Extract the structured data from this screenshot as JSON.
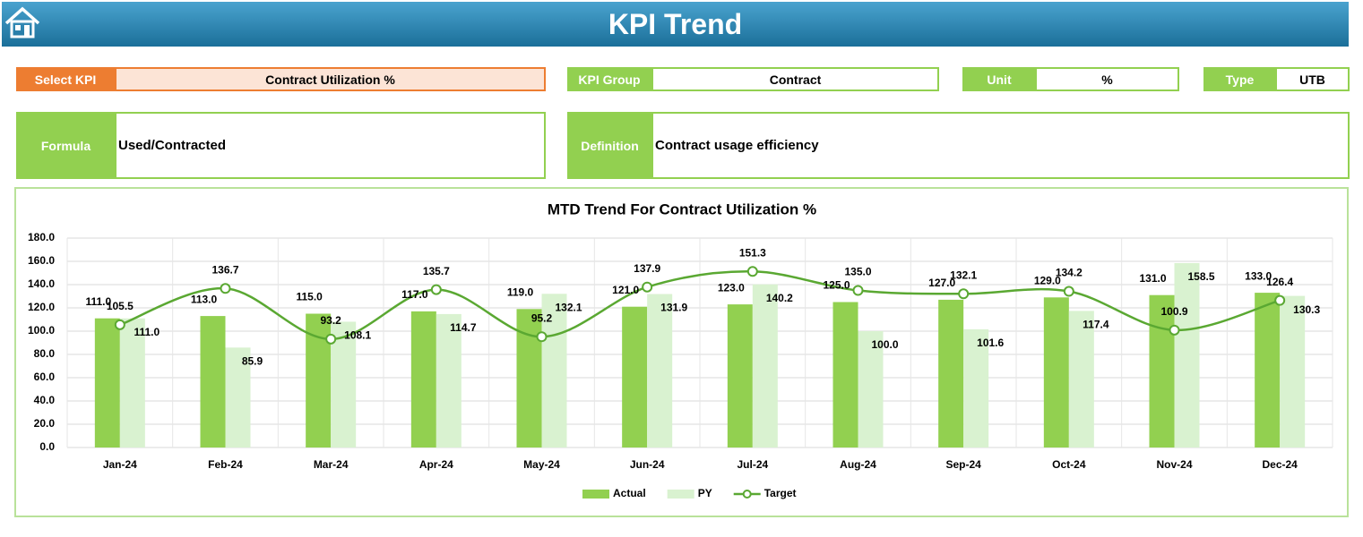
{
  "header": {
    "title": "KPI Trend"
  },
  "fields": {
    "select_kpi": {
      "label": "Select KPI",
      "value": "Contract Utilization %"
    },
    "kpi_group": {
      "label": "KPI Group",
      "value": "Contract"
    },
    "unit": {
      "label": "Unit",
      "value": "%"
    },
    "type": {
      "label": "Type",
      "value": "UTB"
    },
    "formula": {
      "label": "Formula",
      "value": "Used/Contracted"
    },
    "definition": {
      "label": "Definition",
      "value": "Contract usage efficiency"
    }
  },
  "chart_data": {
    "type": "combo",
    "title": "MTD Trend For Contract Utilization %",
    "categories": [
      "Jan-24",
      "Feb-24",
      "Mar-24",
      "Apr-24",
      "May-24",
      "Jun-24",
      "Jul-24",
      "Aug-24",
      "Sep-24",
      "Oct-24",
      "Nov-24",
      "Dec-24"
    ],
    "series": [
      {
        "name": "Actual",
        "type": "bar",
        "color": "#92d050",
        "values": [
          111,
          113,
          115,
          117,
          119,
          121,
          123,
          125,
          127,
          129,
          131,
          133
        ],
        "value_labels": [
          "111.0",
          "113.0",
          "115.0",
          "117.0",
          "119.0",
          "121.0",
          "123.0",
          "125.0",
          "127.0",
          "129.0",
          "131.0",
          "133.0"
        ]
      },
      {
        "name": "PY",
        "type": "bar",
        "color": "#d9f2d0",
        "values": [
          111,
          85.9,
          108.1,
          114.7,
          132.1,
          131.9,
          140.2,
          100,
          101.6,
          117.4,
          158.5,
          130.3
        ],
        "value_labels": [
          "111.0",
          "85.9",
          "108.1",
          "114.7",
          "132.1",
          "131.9",
          "140.2",
          "100.0",
          "101.6",
          "117.4",
          "158.5",
          "130.3"
        ]
      },
      {
        "name": "Target",
        "type": "line",
        "color": "#5aa832",
        "values": [
          105.5,
          136.7,
          93.2,
          135.7,
          95.2,
          137.9,
          151.3,
          135,
          132.1,
          134.2,
          100.9,
          126.4
        ],
        "value_labels": [
          "105.5",
          "136.7",
          "93.2",
          "135.7",
          "95.2",
          "137.9",
          "151.3",
          "135.0",
          "132.1",
          "134.2",
          "100.9",
          "126.4"
        ]
      }
    ],
    "ylim": [
      0,
      180
    ],
    "yticks": [
      {
        "value": 0,
        "label": "0.0"
      },
      {
        "value": 20,
        "label": "20.0"
      },
      {
        "value": 40,
        "label": "40.0"
      },
      {
        "value": 60,
        "label": "60.0"
      },
      {
        "value": 80,
        "label": "80.0"
      },
      {
        "value": 100,
        "label": "100.0"
      },
      {
        "value": 120,
        "label": "120.0"
      },
      {
        "value": 140,
        "label": "140.0"
      },
      {
        "value": 160,
        "label": "160.0"
      },
      {
        "value": 180,
        "label": "180.0"
      }
    ],
    "grid": true,
    "legend": "bottom"
  }
}
